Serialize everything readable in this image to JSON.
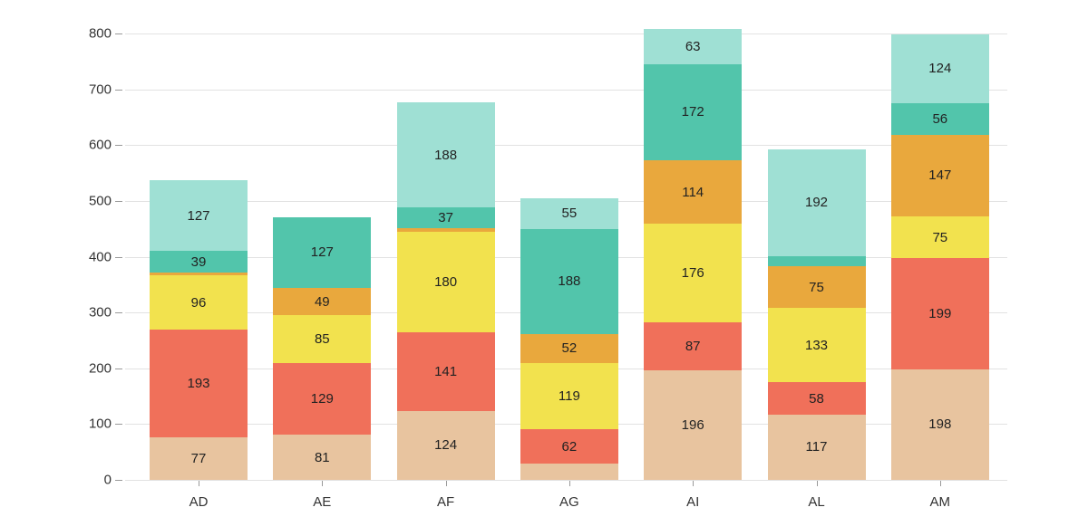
{
  "chart_data": {
    "type": "bar",
    "stacked": true,
    "title": "",
    "xlabel": "",
    "ylabel": "",
    "categories": [
      "AD",
      "AE",
      "AF",
      "AG",
      "AI",
      "AL",
      "AM"
    ],
    "series": [
      {
        "name": "tan",
        "color": "#e8c49f",
        "values": [
          77,
          81,
          124,
          29,
          196,
          117,
          198
        ]
      },
      {
        "name": "salmon",
        "color": "#f0705a",
        "values": [
          193,
          129,
          141,
          62,
          87,
          58,
          199
        ]
      },
      {
        "name": "yellow",
        "color": "#f2e24e",
        "values": [
          96,
          85,
          180,
          119,
          176,
          133,
          75
        ]
      },
      {
        "name": "orange",
        "color": "#e9a83d",
        "values": [
          5,
          49,
          6,
          52,
          114,
          75,
          147
        ]
      },
      {
        "name": "teal",
        "color": "#52c5ab",
        "values": [
          39,
          127,
          37,
          188,
          172,
          18,
          56
        ]
      },
      {
        "name": "mint",
        "color": "#9fe0d4",
        "values": [
          127,
          0,
          188,
          55,
          63,
          192,
          124
        ]
      }
    ],
    "bar_totals": [
      537,
      471,
      676,
      505,
      808,
      593,
      799
    ],
    "ylim": [
      0,
      800
    ],
    "ytick_step": 100,
    "yticks": [
      "0",
      "100",
      "200",
      "300",
      "400",
      "500",
      "600",
      "700",
      "800"
    ],
    "grid": true,
    "legend": false,
    "label_min_value": 33,
    "grid_color": "#e2e2e2",
    "tick_color": "#999999",
    "text_color": "#333333",
    "background": "#ffffff"
  }
}
